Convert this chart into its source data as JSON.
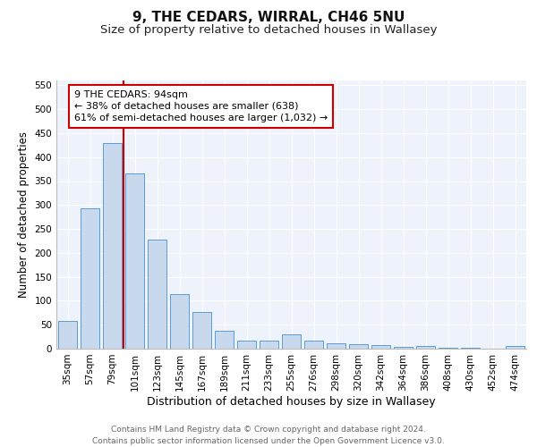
{
  "title1": "9, THE CEDARS, WIRRAL, CH46 5NU",
  "title2": "Size of property relative to detached houses in Wallasey",
  "xlabel": "Distribution of detached houses by size in Wallasey",
  "ylabel": "Number of detached properties",
  "categories": [
    "35sqm",
    "57sqm",
    "79sqm",
    "101sqm",
    "123sqm",
    "145sqm",
    "167sqm",
    "189sqm",
    "211sqm",
    "233sqm",
    "255sqm",
    "276sqm",
    "298sqm",
    "320sqm",
    "342sqm",
    "364sqm",
    "386sqm",
    "408sqm",
    "430sqm",
    "452sqm",
    "474sqm"
  ],
  "values": [
    57,
    293,
    430,
    365,
    228,
    113,
    76,
    38,
    17,
    17,
    30,
    17,
    11,
    10,
    8,
    4,
    5,
    1,
    1,
    0,
    5
  ],
  "bar_color": "#c9d9ed",
  "bar_edge_color": "#5b9bd5",
  "vline_x_index": 2.5,
  "vline_color": "#cc0000",
  "annotation_text": "9 THE CEDARS: 94sqm\n← 38% of detached houses are smaller (638)\n61% of semi-detached houses are larger (1,032) →",
  "annotation_box_color": "#ffffff",
  "annotation_box_edge": "#cc0000",
  "ylim": [
    0,
    560
  ],
  "yticks": [
    0,
    50,
    100,
    150,
    200,
    250,
    300,
    350,
    400,
    450,
    500,
    550
  ],
  "footer": "Contains HM Land Registry data © Crown copyright and database right 2024.\nContains public sector information licensed under the Open Government Licence v3.0.",
  "bg_color": "#eef2fa",
  "grid_color": "#ffffff",
  "title1_fontsize": 11,
  "title2_fontsize": 9.5,
  "xlabel_fontsize": 9,
  "ylabel_fontsize": 8.5,
  "tick_fontsize": 7.5,
  "annot_fontsize": 8,
  "footer_fontsize": 6.5
}
